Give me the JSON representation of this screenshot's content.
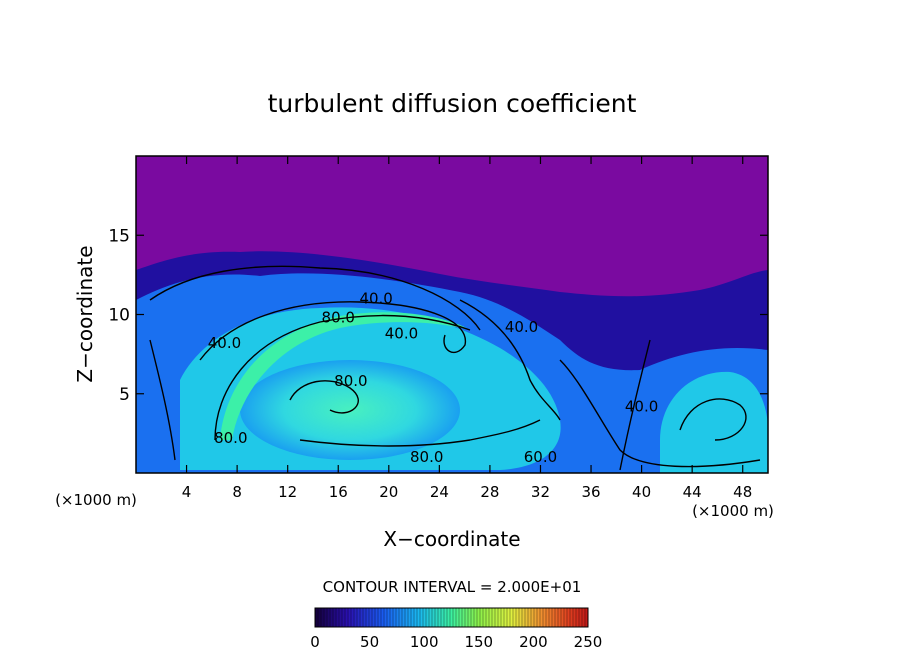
{
  "chart_data": {
    "type": "heatmap",
    "title": "turbulent diffusion coefficient",
    "xlabel": "X−coordinate",
    "ylabel": "Z−coordinate",
    "x_unit_left": "(×1000 m)",
    "x_unit_right": "(×1000 m)",
    "xlim": [
      0,
      50
    ],
    "ylim": [
      0,
      20
    ],
    "x_ticks": [
      4,
      8,
      12,
      16,
      20,
      24,
      28,
      32,
      36,
      40,
      44,
      48
    ],
    "y_ticks": [
      5,
      10,
      15
    ],
    "contour_interval_text": "CONTOUR INTERVAL = 2.000E+01",
    "contour_labels": [
      {
        "text": "40.0",
        "x": 19.0,
        "y": 11.0
      },
      {
        "text": "80.0",
        "x": 16.0,
        "y": 9.8
      },
      {
        "text": "40.0",
        "x": 21.0,
        "y": 8.8
      },
      {
        "text": "40.0",
        "x": 7.0,
        "y": 8.2
      },
      {
        "text": "40.0",
        "x": 30.5,
        "y": 9.2
      },
      {
        "text": "80.0",
        "x": 17.0,
        "y": 5.8
      },
      {
        "text": "80.0",
        "x": 7.5,
        "y": 2.2
      },
      {
        "text": "80.0",
        "x": 23.0,
        "y": 1.0
      },
      {
        "text": "60.0",
        "x": 32.0,
        "y": 1.0
      },
      {
        "text": "40.0",
        "x": 40.0,
        "y": 4.2
      }
    ],
    "colorbar": {
      "min": 0,
      "max": 250,
      "ticks": [
        "0",
        "50",
        "100",
        "150",
        "200",
        "250"
      ],
      "colors": [
        "#14003a",
        "#2a10b0",
        "#1a5cf0",
        "#1ab8f0",
        "#3cf0a0",
        "#8cf04a",
        "#e0f040",
        "#f09030",
        "#e04020",
        "#c01818"
      ]
    },
    "field_colors": {
      "background": "#7a0aa0",
      "low": "#2010a0",
      "mid": "#1a70f0",
      "high": "#20c8e8",
      "peak": "#3cf0a8"
    }
  }
}
